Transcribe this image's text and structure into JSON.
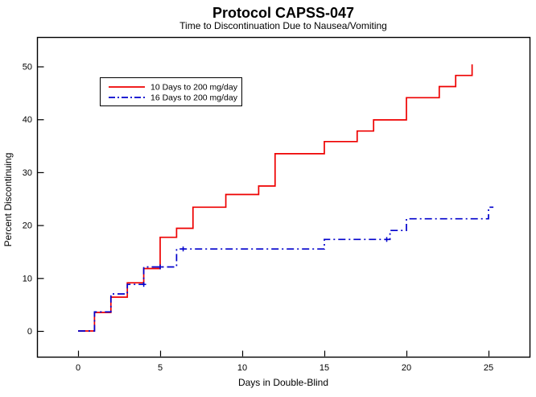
{
  "window": {
    "title": "Protocol CAPSS-047"
  },
  "chart_data": {
    "type": "line",
    "subtype": "kaplan-meier-step",
    "title": "Protocol CAPSS-047",
    "subtitle": "Time to Discontinuation Due to Nausea/Vomiting",
    "xlabel": "Days in Double-Blind",
    "ylabel": "Percent Discontinuing",
    "x_ticks": [
      0,
      5,
      10,
      15,
      20,
      25
    ],
    "y_ticks": [
      0,
      10,
      20,
      30,
      40,
      50
    ],
    "xlim": [
      -2.5,
      27.5
    ],
    "ylim": [
      -6.8,
      55.5
    ],
    "grid": "off",
    "legend_position": "upper-left-inside-box",
    "frame_color": "#000000",
    "series": [
      {
        "name": "10 Days to 200 mg/day",
        "color": "#ee0000",
        "line_style": "solid",
        "points": [
          [
            0,
            0
          ],
          [
            1,
            0
          ],
          [
            1,
            3.5
          ],
          [
            2,
            3.5
          ],
          [
            2,
            6.4
          ],
          [
            3,
            6.4
          ],
          [
            3,
            9.1
          ],
          [
            4,
            9.1
          ],
          [
            4,
            11.8
          ],
          [
            5,
            11.8
          ],
          [
            5,
            17.7
          ],
          [
            6,
            17.7
          ],
          [
            6,
            19.4
          ],
          [
            7,
            19.4
          ],
          [
            7,
            23.4
          ],
          [
            9,
            23.4
          ],
          [
            9,
            25.8
          ],
          [
            11,
            25.8
          ],
          [
            11,
            27.4
          ],
          [
            12,
            27.4
          ],
          [
            12,
            33.5
          ],
          [
            15,
            33.5
          ],
          [
            15,
            35.8
          ],
          [
            17,
            35.8
          ],
          [
            17,
            37.8
          ],
          [
            18,
            37.8
          ],
          [
            18,
            39.9
          ],
          [
            20,
            39.9
          ],
          [
            20,
            44.1
          ],
          [
            22,
            44.1
          ],
          [
            22,
            46.2
          ],
          [
            23,
            46.2
          ],
          [
            23,
            48.3
          ],
          [
            24,
            48.3
          ],
          [
            24,
            50.4
          ]
        ],
        "censor_marks": []
      },
      {
        "name": "16 Days to 200 mg/day",
        "color": "#0000cc",
        "line_style": "dash-dot",
        "points": [
          [
            0,
            0
          ],
          [
            1,
            0
          ],
          [
            1,
            3.6
          ],
          [
            2,
            3.6
          ],
          [
            2,
            7.0
          ],
          [
            3,
            7.0
          ],
          [
            3,
            8.8
          ],
          [
            4,
            8.8
          ],
          [
            4,
            12.1
          ],
          [
            6,
            12.1
          ],
          [
            6,
            15.5
          ],
          [
            15,
            15.5
          ],
          [
            15,
            17.3
          ],
          [
            19,
            17.3
          ],
          [
            19,
            19.0
          ],
          [
            20,
            19.0
          ],
          [
            20,
            21.2
          ],
          [
            25,
            21.2
          ],
          [
            25,
            23.4
          ],
          [
            25.3,
            23.4
          ]
        ],
        "censor_marks": [
          [
            4,
            8.8
          ],
          [
            5,
            12.1
          ],
          [
            6.4,
            15.5
          ],
          [
            18.8,
            17.3
          ]
        ]
      }
    ]
  }
}
